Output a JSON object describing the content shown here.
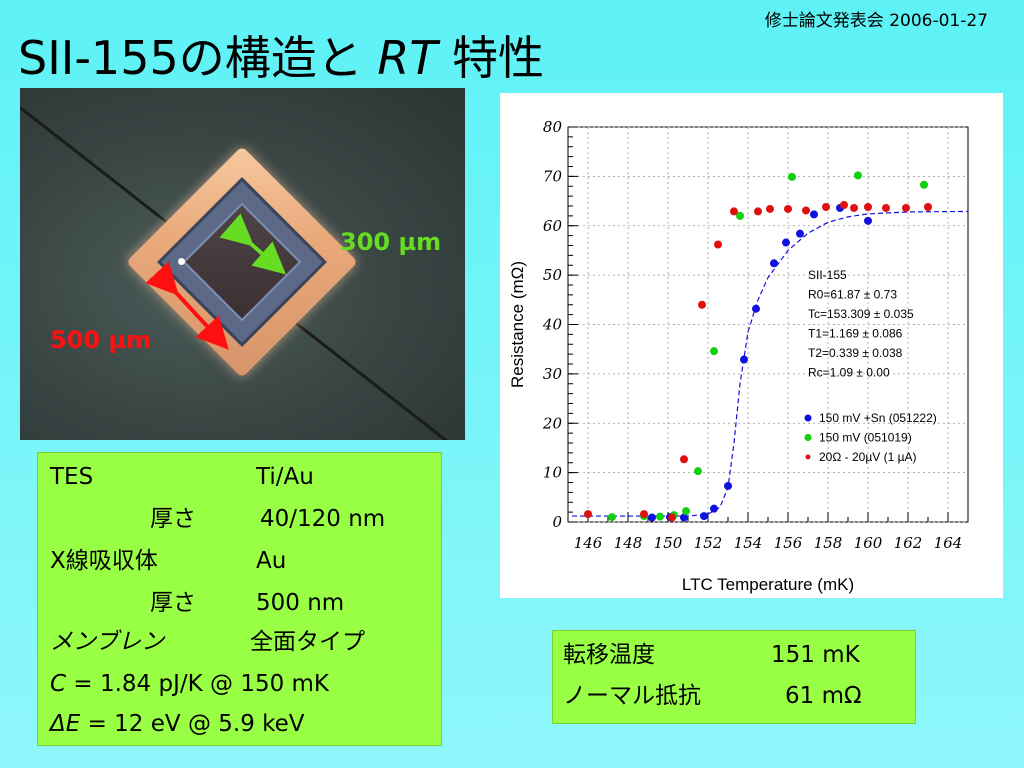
{
  "header": {
    "title_main": "SII-155の構造と",
    "title_italic": "RT",
    "title_tail": "特性",
    "meta": "修士論文発表会 2006-01-27"
  },
  "photo": {
    "label_green": "300 µm",
    "label_red": "500 µm"
  },
  "specs": {
    "rows": [
      {
        "k": "TES",
        "v": "Ti/Au"
      },
      {
        "k": "厚さ",
        "v": "40/120 nm"
      },
      {
        "k": "X線吸収体",
        "v": "Au"
      },
      {
        "k": "厚さ",
        "v": "500 nm"
      },
      {
        "k": "メンブレン",
        "v": "全面タイプ"
      }
    ],
    "c_sym": "C",
    "c_val": " = 1.84 pJ/K @ 150 mK",
    "de_sym": "ΔE",
    "de_val": " = 12 eV @ 5.9 keV"
  },
  "result": {
    "row1_k": "転移温度",
    "row1_v": "151 mK",
    "row2_k": "ノーマル抵抗",
    "row2_v": "61 mΩ"
  },
  "chart_data": {
    "type": "scatter",
    "xlabel": "LTC Temperature (mK)",
    "ylabel": "Resistance (mΩ)",
    "xlim": [
      145,
      165
    ],
    "ylim": [
      0,
      80
    ],
    "xticks": [
      146,
      148,
      150,
      152,
      154,
      156,
      158,
      160,
      162,
      164
    ],
    "yticks": [
      0,
      10,
      20,
      30,
      40,
      50,
      60,
      70,
      80
    ],
    "grid": true,
    "fit_params": [
      "SII-155",
      "R0=61.87 ± 0.73",
      "Tc=153.309 ± 0.035",
      "T1=1.169 ± 0.086",
      "T2=0.339 ± 0.038",
      "Rc=1.09 ± 0.00"
    ],
    "legend_position": "lower-right",
    "series": [
      {
        "name": "150 mV +Sn (051222)",
        "color": "#1010e0",
        "points": [
          [
            149.2,
            0.9
          ],
          [
            150.1,
            1.0
          ],
          [
            150.8,
            0.9
          ],
          [
            151.8,
            1.2
          ],
          [
            152.3,
            2.7
          ],
          [
            153.0,
            7.3
          ],
          [
            153.8,
            32.9
          ],
          [
            154.4,
            43.2
          ],
          [
            155.3,
            52.4
          ],
          [
            155.9,
            56.6
          ],
          [
            156.6,
            58.4
          ],
          [
            157.3,
            62.3
          ],
          [
            158.6,
            63.6
          ],
          [
            160.0,
            61.0
          ]
        ]
      },
      {
        "name": "150 mV (051019)",
        "color": "#10d010",
        "points": [
          [
            147.2,
            1.0
          ],
          [
            148.8,
            1.2
          ],
          [
            149.6,
            1.1
          ],
          [
            150.3,
            1.4
          ],
          [
            150.9,
            2.2
          ],
          [
            151.5,
            10.3
          ],
          [
            152.3,
            34.6
          ],
          [
            153.6,
            62.0
          ],
          [
            156.2,
            69.9
          ],
          [
            159.5,
            70.2
          ],
          [
            162.8,
            68.3
          ]
        ]
      },
      {
        "name": "20Ω - 20µV (1 µA)",
        "color": "#e01010",
        "points": [
          [
            146.0,
            1.6
          ],
          [
            148.8,
            1.6
          ],
          [
            150.2,
            0.9
          ],
          [
            150.8,
            12.7
          ],
          [
            151.7,
            44.0
          ],
          [
            152.5,
            56.2
          ],
          [
            153.3,
            62.9
          ],
          [
            154.5,
            62.9
          ],
          [
            155.1,
            63.4
          ],
          [
            156.0,
            63.4
          ],
          [
            156.9,
            63.1
          ],
          [
            157.9,
            63.8
          ],
          [
            158.8,
            64.2
          ],
          [
            159.3,
            63.6
          ],
          [
            160.0,
            63.8
          ],
          [
            160.9,
            63.6
          ],
          [
            161.9,
            63.6
          ],
          [
            163.0,
            63.8
          ]
        ]
      }
    ],
    "fit": {
      "name": "fit",
      "color": "#1010e0",
      "points": [
        [
          145.2,
          1.2
        ],
        [
          151.0,
          1.2
        ],
        [
          152.0,
          1.6
        ],
        [
          152.6,
          3.0
        ],
        [
          153.0,
          7.0
        ],
        [
          153.3,
          16.0
        ],
        [
          153.6,
          28.0
        ],
        [
          154.0,
          38.5
        ],
        [
          154.5,
          45.0
        ],
        [
          155.0,
          49.5
        ],
        [
          156.0,
          55.0
        ],
        [
          157.0,
          58.5
        ],
        [
          158.0,
          60.7
        ],
        [
          159.0,
          61.8
        ],
        [
          160.0,
          62.4
        ],
        [
          162.0,
          62.8
        ],
        [
          165.0,
          62.9
        ]
      ]
    }
  }
}
